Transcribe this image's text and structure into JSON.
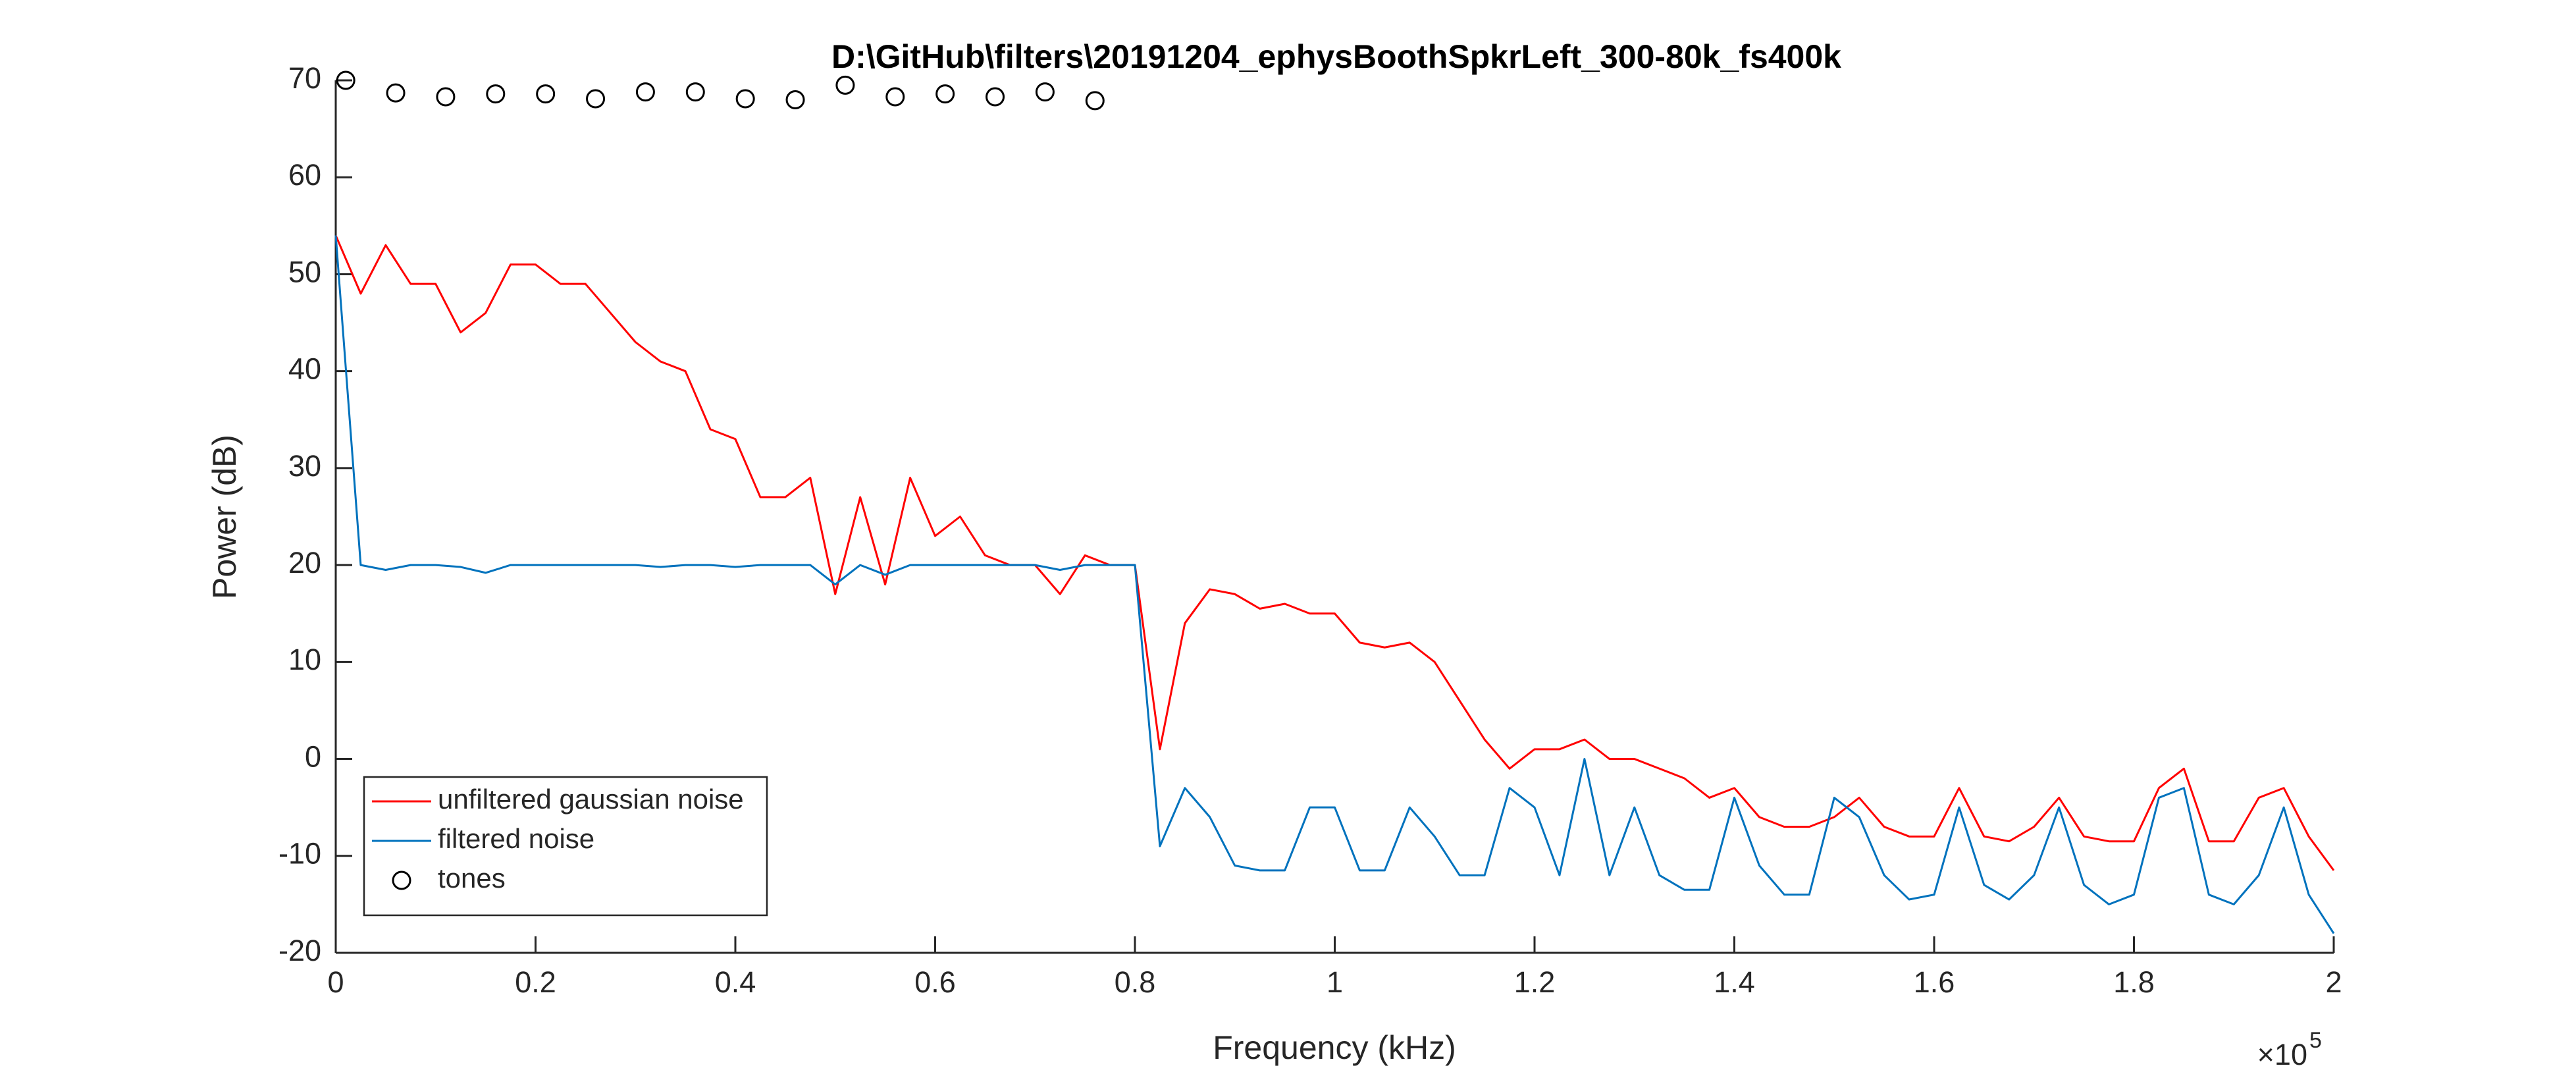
{
  "chart_data": {
    "type": "line",
    "title": "D:\\GitHub\\filters\\20191204_ephysBoothSpkrLeft_300-80k_fs400k",
    "xlabel": "Frequency (kHz)",
    "ylabel": "Power (dB)",
    "x_multiplier": {
      "base": "×10",
      "exponent": "5"
    },
    "xlim": [
      0,
      200000
    ],
    "ylim": [
      -20,
      70
    ],
    "xticks": [
      0,
      {
        "value": 20000,
        "label": "0.2"
      },
      {
        "value": 40000,
        "label": "0.4"
      },
      {
        "value": 60000,
        "label": "0.6"
      },
      {
        "value": 80000,
        "label": "0.8"
      },
      {
        "value": 100000,
        "label": "1"
      },
      {
        "value": 120000,
        "label": "1.2"
      },
      {
        "value": 140000,
        "label": "1.4"
      },
      {
        "value": 160000,
        "label": "1.6"
      },
      {
        "value": 180000,
        "label": "1.8"
      },
      {
        "value": 200000,
        "label": "2"
      }
    ],
    "yticks": [
      -20,
      -10,
      0,
      10,
      20,
      30,
      40,
      50,
      60,
      70
    ],
    "grid": false,
    "legend": "southwest",
    "x": [
      0,
      2500,
      5000,
      7500,
      10000,
      12500,
      15000,
      17500,
      20000,
      22500,
      25000,
      27500,
      30000,
      32500,
      35000,
      37500,
      40000,
      42500,
      45000,
      47500,
      50000,
      52500,
      55000,
      57500,
      60000,
      62500,
      65000,
      67500,
      70000,
      72500,
      75000,
      77500,
      80000,
      82500,
      85000,
      87500,
      90000,
      92500,
      95000,
      97500,
      100000,
      102500,
      105000,
      107500,
      110000,
      112500,
      115000,
      117500,
      120000,
      122500,
      125000,
      127500,
      130000,
      132500,
      135000,
      137500,
      140000,
      142500,
      145000,
      147500,
      150000,
      152500,
      155000,
      157500,
      160000,
      162500,
      165000,
      167500,
      170000,
      172500,
      175000,
      177500,
      180000,
      182500,
      185000,
      187500,
      190000,
      192500,
      195000,
      197500,
      200000
    ],
    "series": [
      {
        "name": "unfiltered gaussian noise",
        "color": "#ff0000",
        "values": [
          54,
          48,
          53,
          49,
          49,
          44,
          46,
          51,
          51,
          49,
          49,
          46,
          43,
          41,
          40,
          34,
          33,
          27,
          27,
          29,
          17,
          27,
          18,
          29,
          23,
          25,
          21,
          20,
          20,
          17,
          21,
          20,
          20,
          1,
          14,
          17.5,
          17,
          15.5,
          16,
          15,
          15,
          12,
          11.5,
          12,
          10,
          6,
          2,
          -1,
          1,
          1,
          2,
          0,
          0,
          -1,
          -2,
          -4,
          -3,
          -6,
          -7,
          -7,
          -6,
          -4,
          -7,
          -8,
          -8,
          -3,
          -8,
          -8.5,
          -7,
          -4,
          -8,
          -8.5,
          -8.5,
          -3,
          -1,
          -8.5,
          -8.5,
          -4,
          -3,
          -8,
          -11.5
        ]
      },
      {
        "name": "filtered noise",
        "color": "#0072bd",
        "values": [
          54,
          20,
          19.5,
          20,
          20,
          19.8,
          19.2,
          20,
          20,
          20,
          20,
          20,
          20,
          19.8,
          20,
          20,
          19.8,
          20,
          20,
          20,
          18,
          20,
          19,
          20,
          20,
          20,
          20,
          20,
          20,
          19.5,
          20,
          20,
          20,
          -9,
          -3,
          -6,
          -11,
          -11.5,
          -11.5,
          -5,
          -5,
          -11.5,
          -11.5,
          -5,
          -8,
          -12,
          -12,
          -3,
          -5,
          -12,
          0,
          -12,
          -5,
          -12,
          -13.5,
          -13.5,
          -4,
          -11,
          -14,
          -14,
          -4,
          -6,
          -12,
          -14.5,
          -14,
          -5,
          -13,
          -14.5,
          -12,
          -5,
          -13,
          -15,
          -14,
          -4,
          -3,
          -14,
          -15,
          -12,
          -5,
          -14,
          -18
        ]
      },
      {
        "name": "tones",
        "color": "#000000",
        "marker": "circle",
        "x": [
          1000,
          6000,
          11000,
          16000,
          21000,
          26000,
          31000,
          36000,
          41000,
          46000,
          51000,
          56000,
          61000,
          66000,
          71000,
          76000
        ],
        "values": [
          70,
          68.7,
          68.3,
          68.6,
          68.6,
          68.1,
          68.8,
          68.8,
          68.1,
          68.0,
          69.5,
          68.3,
          68.6,
          68.3,
          68.8,
          67.9
        ]
      }
    ]
  }
}
